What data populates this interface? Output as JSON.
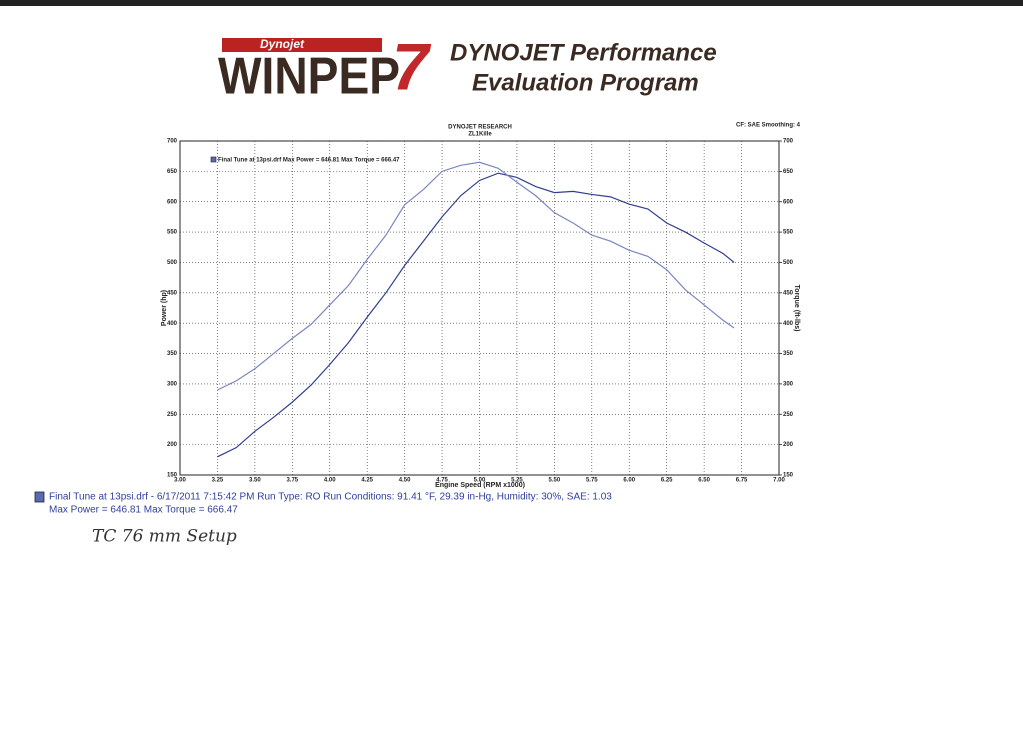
{
  "header": {
    "brand": "Dynojet",
    "product": "WINPEP",
    "version": "7",
    "line1": "DYNOJET Performance",
    "line2": "Evaluation Program"
  },
  "chart_data": {
    "type": "line",
    "title": "DYNOJET RESEARCH",
    "subtitle": "ZL1Kille",
    "settings": "CF: SAE  Smoothing: 4",
    "legend": "Final Tune at 13psi.drf Max Power = 646.81   Max Torque = 666.47",
    "x_label": "Engine Speed (RPM x1000)",
    "y_label": "Power (hp)",
    "y2_label": "Torque (ft-lbs)",
    "xlim": [
      3,
      7
    ],
    "ylim": [
      150,
      700
    ],
    "y2lim": [
      150,
      700
    ],
    "grid": true,
    "xticks": [
      {
        "value": 3,
        "label": "3.00"
      },
      {
        "value": 3.25,
        "label": "3.25"
      },
      {
        "value": 3.5,
        "label": "3.50"
      },
      {
        "value": 3.75,
        "label": "3.75"
      },
      {
        "value": 4,
        "label": "4.00"
      },
      {
        "value": 4.25,
        "label": "4.25"
      },
      {
        "value": 4.5,
        "label": "4.50"
      },
      {
        "value": 4.75,
        "label": "4.75"
      },
      {
        "value": 5,
        "label": "5.00"
      },
      {
        "value": 5.25,
        "label": "5.25"
      },
      {
        "value": 5.5,
        "label": "5.50"
      },
      {
        "value": 5.75,
        "label": "5.75"
      },
      {
        "value": 6,
        "label": "6.00"
      },
      {
        "value": 6.25,
        "label": "6.25"
      },
      {
        "value": 6.5,
        "label": "6.50"
      },
      {
        "value": 6.75,
        "label": "6.75"
      },
      {
        "value": 7,
        "label": "7.00"
      }
    ],
    "yticks": [
      150,
      200,
      250,
      300,
      350,
      400,
      450,
      500,
      550,
      600,
      650,
      700
    ],
    "y2ticks": [
      150,
      200,
      250,
      300,
      350,
      400,
      450,
      500,
      550,
      600,
      650,
      700
    ],
    "x": [
      3.25,
      3.375,
      3.5,
      3.625,
      3.75,
      3.875,
      4.0,
      4.125,
      4.25,
      4.375,
      4.5,
      4.625,
      4.75,
      4.875,
      5.0,
      5.125,
      5.25,
      5.375,
      5.5,
      5.625,
      5.75,
      5.875,
      6.0,
      6.125,
      6.25,
      6.375,
      6.5,
      6.625,
      6.7
    ],
    "series": [
      {
        "color": "#2f3f8f",
        "values": [
          180,
          195,
          222,
          245,
          270,
          298,
          332,
          368,
          410,
          450,
          495,
          535,
          575,
          610,
          635,
          647,
          640,
          625,
          615,
          617,
          612,
          608,
          596,
          588,
          565,
          550,
          532,
          515,
          500
        ]
      },
      {
        "color": "#7a86c0",
        "axis": "y2",
        "values": [
          290,
          305,
          325,
          350,
          375,
          398,
          430,
          462,
          505,
          545,
          595,
          620,
          650,
          660,
          665,
          655,
          632,
          610,
          582,
          565,
          545,
          535,
          520,
          510,
          488,
          455,
          430,
          405,
          392
        ]
      }
    ]
  },
  "footer": {
    "line1": "Final Tune at 13psi.drf - 6/17/2011 7:15:42 PM  Run Type: RO  Run Conditions: 91.41 °F, 29.39 in-Hg,  Humidity:  30%, SAE: 1.03",
    "line2": "Max Power = 646.81  Max Torque = 666.47",
    "handwriting": "TC 76 mm  Setup"
  }
}
